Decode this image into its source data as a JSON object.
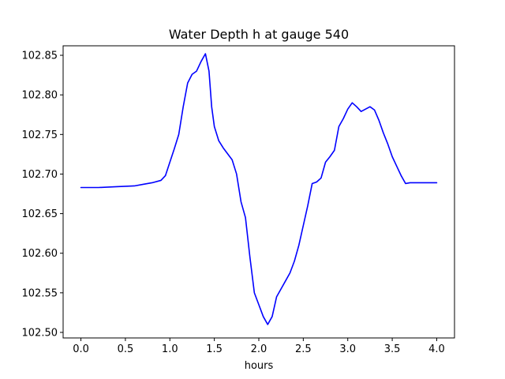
{
  "chart_data": {
    "type": "line",
    "title": "Water Depth h at gauge 540",
    "xlabel": "hours",
    "ylabel": "",
    "xlim": [
      -0.2,
      4.2
    ],
    "ylim": [
      102.493,
      102.862
    ],
    "x_ticks": [
      0.0,
      0.5,
      1.0,
      1.5,
      2.0,
      2.5,
      3.0,
      3.5,
      4.0
    ],
    "x_tick_labels": [
      "0.0",
      "0.5",
      "1.0",
      "1.5",
      "2.0",
      "2.5",
      "3.0",
      "3.5",
      "4.0"
    ],
    "y_ticks": [
      102.5,
      102.55,
      102.6,
      102.65,
      102.7,
      102.75,
      102.8,
      102.85
    ],
    "y_tick_labels": [
      "102.50",
      "102.55",
      "102.60",
      "102.65",
      "102.70",
      "102.75",
      "102.80",
      "102.85"
    ],
    "grid": false,
    "line_color": "#0000ff",
    "series": [
      {
        "x": [
          0.0,
          0.2,
          0.4,
          0.6,
          0.7,
          0.8,
          0.9,
          0.95,
          1.0,
          1.05,
          1.1,
          1.15,
          1.2,
          1.25,
          1.3,
          1.35,
          1.4,
          1.44,
          1.47,
          1.5,
          1.55,
          1.6,
          1.7,
          1.75,
          1.8,
          1.85,
          1.9,
          1.95,
          2.0,
          2.05,
          2.1,
          2.15,
          2.2,
          2.25,
          2.3,
          2.35,
          2.4,
          2.45,
          2.5,
          2.55,
          2.6,
          2.65,
          2.7,
          2.75,
          2.8,
          2.85,
          2.9,
          2.95,
          3.0,
          3.05,
          3.1,
          3.15,
          3.2,
          3.25,
          3.3,
          3.35,
          3.4,
          3.45,
          3.5,
          3.55,
          3.6,
          3.65,
          3.7,
          3.75,
          3.8,
          3.85,
          3.9,
          3.95,
          4.0
        ],
        "y": [
          102.683,
          102.683,
          102.684,
          102.685,
          102.687,
          102.689,
          102.692,
          102.698,
          102.715,
          102.732,
          102.75,
          102.785,
          102.815,
          102.826,
          102.83,
          102.842,
          102.852,
          102.83,
          102.785,
          102.76,
          102.742,
          102.733,
          102.718,
          102.7,
          102.665,
          102.645,
          102.595,
          102.55,
          102.535,
          102.52,
          102.51,
          102.52,
          102.545,
          102.555,
          102.565,
          102.575,
          102.59,
          102.61,
          102.635,
          102.66,
          102.688,
          102.69,
          102.695,
          102.715,
          102.722,
          102.73,
          102.76,
          102.77,
          102.782,
          102.79,
          102.785,
          102.779,
          102.782,
          102.785,
          102.781,
          102.768,
          102.752,
          102.738,
          102.722,
          102.71,
          102.698,
          102.688,
          102.689,
          102.689,
          102.689,
          102.689,
          102.689,
          102.689,
          102.689
        ]
      }
    ]
  }
}
